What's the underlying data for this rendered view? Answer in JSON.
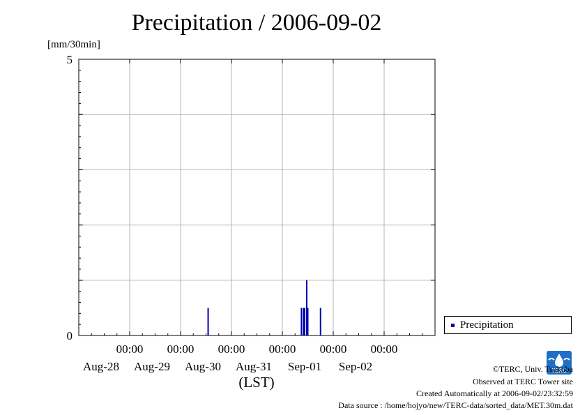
{
  "title": "Precipitation / 2006-09-02",
  "unit_label": "[mm/30min]",
  "x_axis_label": "(LST)",
  "legend": {
    "label": "Precipitation"
  },
  "credits": {
    "copyright": "©TERC, Univ. Tsukuba",
    "site": "Observed at TERC Tower site",
    "created": "Created Automatically at 2006-09-02/23:32:59",
    "source": "Data source : /home/hojyo/new/TERC-data/sorted_data/MET.30m.dat"
  },
  "logo_text": "TERC",
  "colors": {
    "series": "#0000b3",
    "grid": "#b4b4b4",
    "background": "#ffffff"
  },
  "chart_data": {
    "type": "bar",
    "title": "Precipitation / 2006-09-02",
    "ylabel": "[mm/30min]",
    "xlabel": "(LST)",
    "ylim": [
      0,
      5
    ],
    "y_ticks": [
      "0",
      "5"
    ],
    "xlim": [
      "2006-08-27 00:00",
      "2006-09-03 00:00"
    ],
    "x_ticks": [
      {
        "time": "2006-08-28 00:00",
        "label": "00:00",
        "date": "Aug-28"
      },
      {
        "time": "2006-08-29 00:00",
        "label": "00:00",
        "date": "Aug-29"
      },
      {
        "time": "2006-08-30 00:00",
        "label": "00:00",
        "date": "Aug-30"
      },
      {
        "time": "2006-08-31 00:00",
        "label": "00:00",
        "date": "Aug-31"
      },
      {
        "time": "2006-09-01 00:00",
        "label": "00:00",
        "date": "Sep-01"
      },
      {
        "time": "2006-09-02 00:00",
        "label": "00:00",
        "date": "Sep-02"
      }
    ],
    "grid": true,
    "legend_position": "right",
    "series": [
      {
        "name": "Precipitation",
        "points": [
          {
            "time": "2006-08-29 13:00",
            "value": 0.5
          },
          {
            "time": "2006-08-31 09:00",
            "value": 0.5
          },
          {
            "time": "2006-08-31 10:00",
            "value": 0.5
          },
          {
            "time": "2006-08-31 10:30",
            "value": 0.5
          },
          {
            "time": "2006-08-31 11:30",
            "value": 1.0
          },
          {
            "time": "2006-08-31 12:00",
            "value": 0.5
          },
          {
            "time": "2006-08-31 18:00",
            "value": 0.5
          }
        ]
      }
    ]
  }
}
